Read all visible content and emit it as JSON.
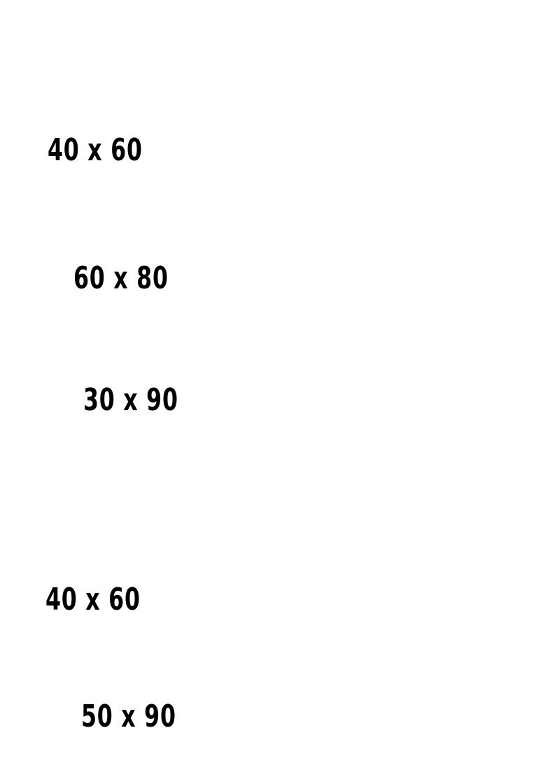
{
  "labels": [
    "40 x 60",
    "60 x 80",
    "30 x 90",
    "40 x 60",
    "50 x 90"
  ],
  "colors": {
    "background": "#ffffff",
    "text": "#000000"
  }
}
